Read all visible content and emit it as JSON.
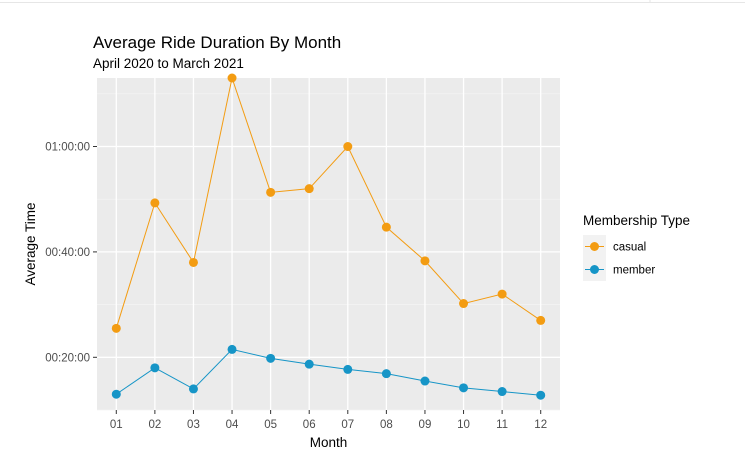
{
  "chart_data": {
    "type": "line",
    "title": "Average Ride Duration By Month",
    "subtitle": "April 2020 to March 2021",
    "xlabel": "Month",
    "ylabel": "Average Time",
    "categories": [
      "01",
      "02",
      "03",
      "04",
      "05",
      "06",
      "07",
      "08",
      "09",
      "10",
      "11",
      "12"
    ],
    "y_unit": "minutes",
    "ylim": [
      10,
      73
    ],
    "y_ticks": [
      20,
      40,
      60
    ],
    "y_tick_labels": [
      "00:20:00",
      "00:40:00",
      "01:00:00"
    ],
    "grid": true,
    "legend": {
      "title": "Membership Type",
      "position": "right"
    },
    "series": [
      {
        "name": "casual",
        "color": "#f39c12",
        "values": [
          25.5,
          49.3,
          38,
          73,
          51.3,
          52,
          60,
          44.7,
          38.3,
          30.2,
          32,
          27
        ]
      },
      {
        "name": "member",
        "color": "#1695c7",
        "values": [
          13,
          18,
          14,
          21.5,
          19.8,
          18.7,
          17.7,
          16.9,
          15.5,
          14.2,
          13.5,
          12.8
        ]
      }
    ]
  }
}
